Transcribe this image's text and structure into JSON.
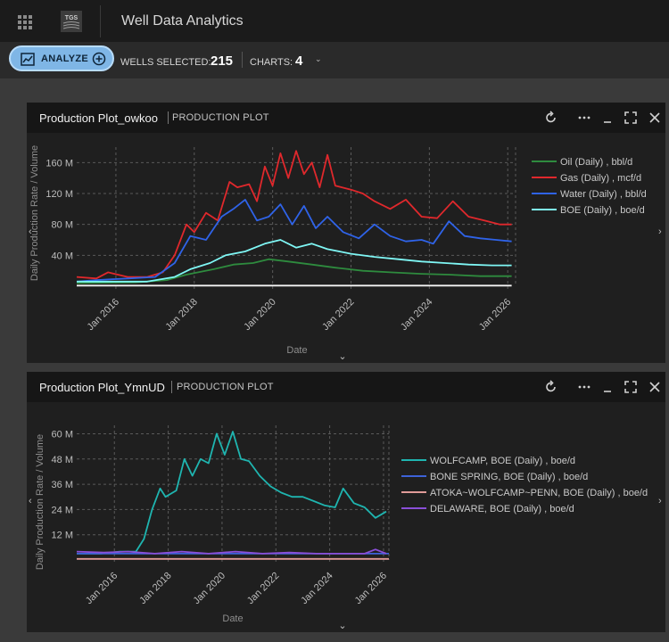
{
  "app": {
    "title": "Well Data Analytics",
    "logo_text": "TGS"
  },
  "toolbar": {
    "analyze_label": "ANALYZE",
    "wells_label": "WELLS SELECTED:",
    "wells_value": "215",
    "charts_label": "CHARTS:",
    "charts_value": "4"
  },
  "panels": [
    {
      "title": "Production Plot_owkoo",
      "subtitle": "PRODUCTION PLOT",
      "controls": [
        "refresh-icon",
        "more-icon",
        "minimize-icon",
        "fullscreen-icon",
        "close-icon"
      ],
      "chart_data": {
        "type": "line",
        "xlabel": "Date",
        "ylabel": "Daily Production Rate / Volume",
        "x_ticks": [
          "Jan 2016",
          "Jan 2018",
          "Jan 2020",
          "Jan 2022",
          "Jan 2024",
          "Jan 2026"
        ],
        "y_ticks": [
          "40 M",
          "80 M",
          "120 M",
          "160 M"
        ],
        "x_range": [
          2015.0,
          2026.2
        ],
        "ylim": [
          0,
          180
        ],
        "grid": true,
        "legend_position": "right",
        "series": [
          {
            "name": "Oil (Daily) , bbl/d",
            "color": "#2e8b3e",
            "points": [
              [
                2015.0,
                4
              ],
              [
                2016.5,
                5
              ],
              [
                2017.3,
                8
              ],
              [
                2017.8,
                15
              ],
              [
                2018.5,
                22
              ],
              [
                2019.0,
                28
              ],
              [
                2019.5,
                30
              ],
              [
                2019.9,
                35
              ],
              [
                2020.4,
                32
              ],
              [
                2021.0,
                28
              ],
              [
                2021.6,
                24
              ],
              [
                2022.3,
                20
              ],
              [
                2023.0,
                18
              ],
              [
                2023.8,
                16
              ],
              [
                2024.5,
                15
              ],
              [
                2025.3,
                13
              ],
              [
                2026.1,
                13
              ]
            ]
          },
          {
            "name": "Gas (Daily) , mcf/d",
            "color": "#e0282c",
            "points": [
              [
                2015.0,
                12
              ],
              [
                2015.5,
                10
              ],
              [
                2015.8,
                18
              ],
              [
                2016.3,
                12
              ],
              [
                2016.8,
                12
              ],
              [
                2017.2,
                18
              ],
              [
                2017.5,
                40
              ],
              [
                2017.8,
                80
              ],
              [
                2018.0,
                70
              ],
              [
                2018.3,
                95
              ],
              [
                2018.6,
                85
              ],
              [
                2018.9,
                135
              ],
              [
                2019.1,
                128
              ],
              [
                2019.4,
                132
              ],
              [
                2019.6,
                110
              ],
              [
                2019.8,
                155
              ],
              [
                2020.0,
                130
              ],
              [
                2020.2,
                172
              ],
              [
                2020.4,
                140
              ],
              [
                2020.6,
                175
              ],
              [
                2020.8,
                145
              ],
              [
                2021.0,
                160
              ],
              [
                2021.2,
                128
              ],
              [
                2021.4,
                170
              ],
              [
                2021.6,
                130
              ],
              [
                2022.0,
                125
              ],
              [
                2022.3,
                120
              ],
              [
                2022.6,
                110
              ],
              [
                2023.0,
                100
              ],
              [
                2023.4,
                112
              ],
              [
                2023.8,
                90
              ],
              [
                2024.2,
                88
              ],
              [
                2024.6,
                110
              ],
              [
                2025.0,
                90
              ],
              [
                2025.4,
                85
              ],
              [
                2025.8,
                80
              ],
              [
                2026.1,
                80
              ]
            ]
          },
          {
            "name": "Water (Daily) , bbl/d",
            "color": "#2f63e8",
            "points": [
              [
                2015.0,
                6
              ],
              [
                2015.5,
                8
              ],
              [
                2016.3,
                10
              ],
              [
                2017.0,
                12
              ],
              [
                2017.5,
                30
              ],
              [
                2017.9,
                65
              ],
              [
                2018.3,
                60
              ],
              [
                2018.7,
                90
              ],
              [
                2019.0,
                100
              ],
              [
                2019.3,
                112
              ],
              [
                2019.6,
                85
              ],
              [
                2019.9,
                90
              ],
              [
                2020.2,
                106
              ],
              [
                2020.5,
                80
              ],
              [
                2020.8,
                104
              ],
              [
                2021.1,
                75
              ],
              [
                2021.4,
                90
              ],
              [
                2021.8,
                70
              ],
              [
                2022.2,
                62
              ],
              [
                2022.6,
                80
              ],
              [
                2023.0,
                65
              ],
              [
                2023.4,
                58
              ],
              [
                2023.8,
                60
              ],
              [
                2024.1,
                55
              ],
              [
                2024.5,
                84
              ],
              [
                2024.9,
                65
              ],
              [
                2025.3,
                62
              ],
              [
                2025.7,
                60
              ],
              [
                2026.1,
                58
              ]
            ]
          },
          {
            "name": "BOE (Daily) , boe/d",
            "color": "#7ff7f5",
            "points": [
              [
                2015.0,
                6
              ],
              [
                2016.0,
                6
              ],
              [
                2016.8,
                6
              ],
              [
                2017.5,
                12
              ],
              [
                2017.9,
                22
              ],
              [
                2018.4,
                30
              ],
              [
                2018.8,
                40
              ],
              [
                2019.3,
                45
              ],
              [
                2019.8,
                55
              ],
              [
                2020.2,
                60
              ],
              [
                2020.6,
                50
              ],
              [
                2021.0,
                55
              ],
              [
                2021.4,
                48
              ],
              [
                2022.0,
                42
              ],
              [
                2022.6,
                38
              ],
              [
                2023.2,
                35
              ],
              [
                2023.8,
                32
              ],
              [
                2024.4,
                30
              ],
              [
                2025.0,
                28
              ],
              [
                2025.6,
                27
              ],
              [
                2026.1,
                27
              ]
            ]
          },
          {
            "name": "",
            "color": "#f4f4f4",
            "points": [
              [
                2015.0,
                0.8
              ],
              [
                2026.1,
                0.8
              ]
            ]
          }
        ]
      }
    },
    {
      "title": "Production Plot_YmnUD",
      "subtitle": "PRODUCTION PLOT",
      "controls": [
        "refresh-icon",
        "more-icon",
        "minimize-icon",
        "fullscreen-icon",
        "close-icon"
      ],
      "chart_data": {
        "type": "line",
        "xlabel": "Date",
        "ylabel": "Daily Production Rate / Volume",
        "x_ticks": [
          "Jan 2016",
          "Jan 2018",
          "Jan 2020",
          "Jan 2022",
          "Jan 2024",
          "Jan 2026"
        ],
        "y_ticks": [
          "12 M",
          "24 M",
          "36 M",
          "48 M",
          "60 M"
        ],
        "x_range": [
          2014.6,
          2026.2
        ],
        "ylim": [
          0,
          64
        ],
        "grid": true,
        "legend_position": "right",
        "series": [
          {
            "name": "WOLFCAMP, BOE (Daily) , boe/d",
            "color": "#1fb5b0",
            "points": [
              [
                2014.6,
                3
              ],
              [
                2015.5,
                3
              ],
              [
                2016.2,
                4
              ],
              [
                2016.8,
                4
              ],
              [
                2017.1,
                10
              ],
              [
                2017.4,
                24
              ],
              [
                2017.7,
                34
              ],
              [
                2017.9,
                30
              ],
              [
                2018.3,
                33
              ],
              [
                2018.6,
                48
              ],
              [
                2018.9,
                40
              ],
              [
                2019.2,
                48
              ],
              [
                2019.5,
                46
              ],
              [
                2019.8,
                60
              ],
              [
                2020.1,
                50
              ],
              [
                2020.4,
                61
              ],
              [
                2020.7,
                48
              ],
              [
                2021.0,
                47
              ],
              [
                2021.4,
                40
              ],
              [
                2021.8,
                35
              ],
              [
                2022.2,
                32
              ],
              [
                2022.6,
                30
              ],
              [
                2023.0,
                30
              ],
              [
                2023.4,
                28
              ],
              [
                2023.8,
                26
              ],
              [
                2024.2,
                25
              ],
              [
                2024.5,
                34
              ],
              [
                2024.9,
                27
              ],
              [
                2025.3,
                25
              ],
              [
                2025.7,
                20
              ],
              [
                2026.1,
                23
              ]
            ]
          },
          {
            "name": "BONE SPRING, BOE (Daily) , boe/d",
            "color": "#3d62d8",
            "points": [
              [
                2014.6,
                3
              ],
              [
                2026.2,
                3
              ]
            ]
          },
          {
            "name": "ATOKA~WOLFCAMP~PENN, BOE (Daily) , boe/d",
            "color": "#e09b98",
            "points": [
              [
                2014.6,
                0.5
              ],
              [
                2026.2,
                0.5
              ]
            ]
          },
          {
            "name": "DELAWARE, BOE (Daily) , boe/d",
            "color": "#8a4fd8",
            "points": [
              [
                2014.6,
                4
              ],
              [
                2015.6,
                3.5
              ],
              [
                2016.5,
                4
              ],
              [
                2017.5,
                3
              ],
              [
                2018.5,
                4
              ],
              [
                2019.5,
                3
              ],
              [
                2020.5,
                4
              ],
              [
                2021.5,
                3
              ],
              [
                2022.5,
                3.5
              ],
              [
                2023.5,
                3
              ],
              [
                2024.5,
                3
              ],
              [
                2025.3,
                3
              ],
              [
                2025.7,
                5
              ],
              [
                2026.1,
                3
              ]
            ]
          }
        ]
      }
    }
  ]
}
